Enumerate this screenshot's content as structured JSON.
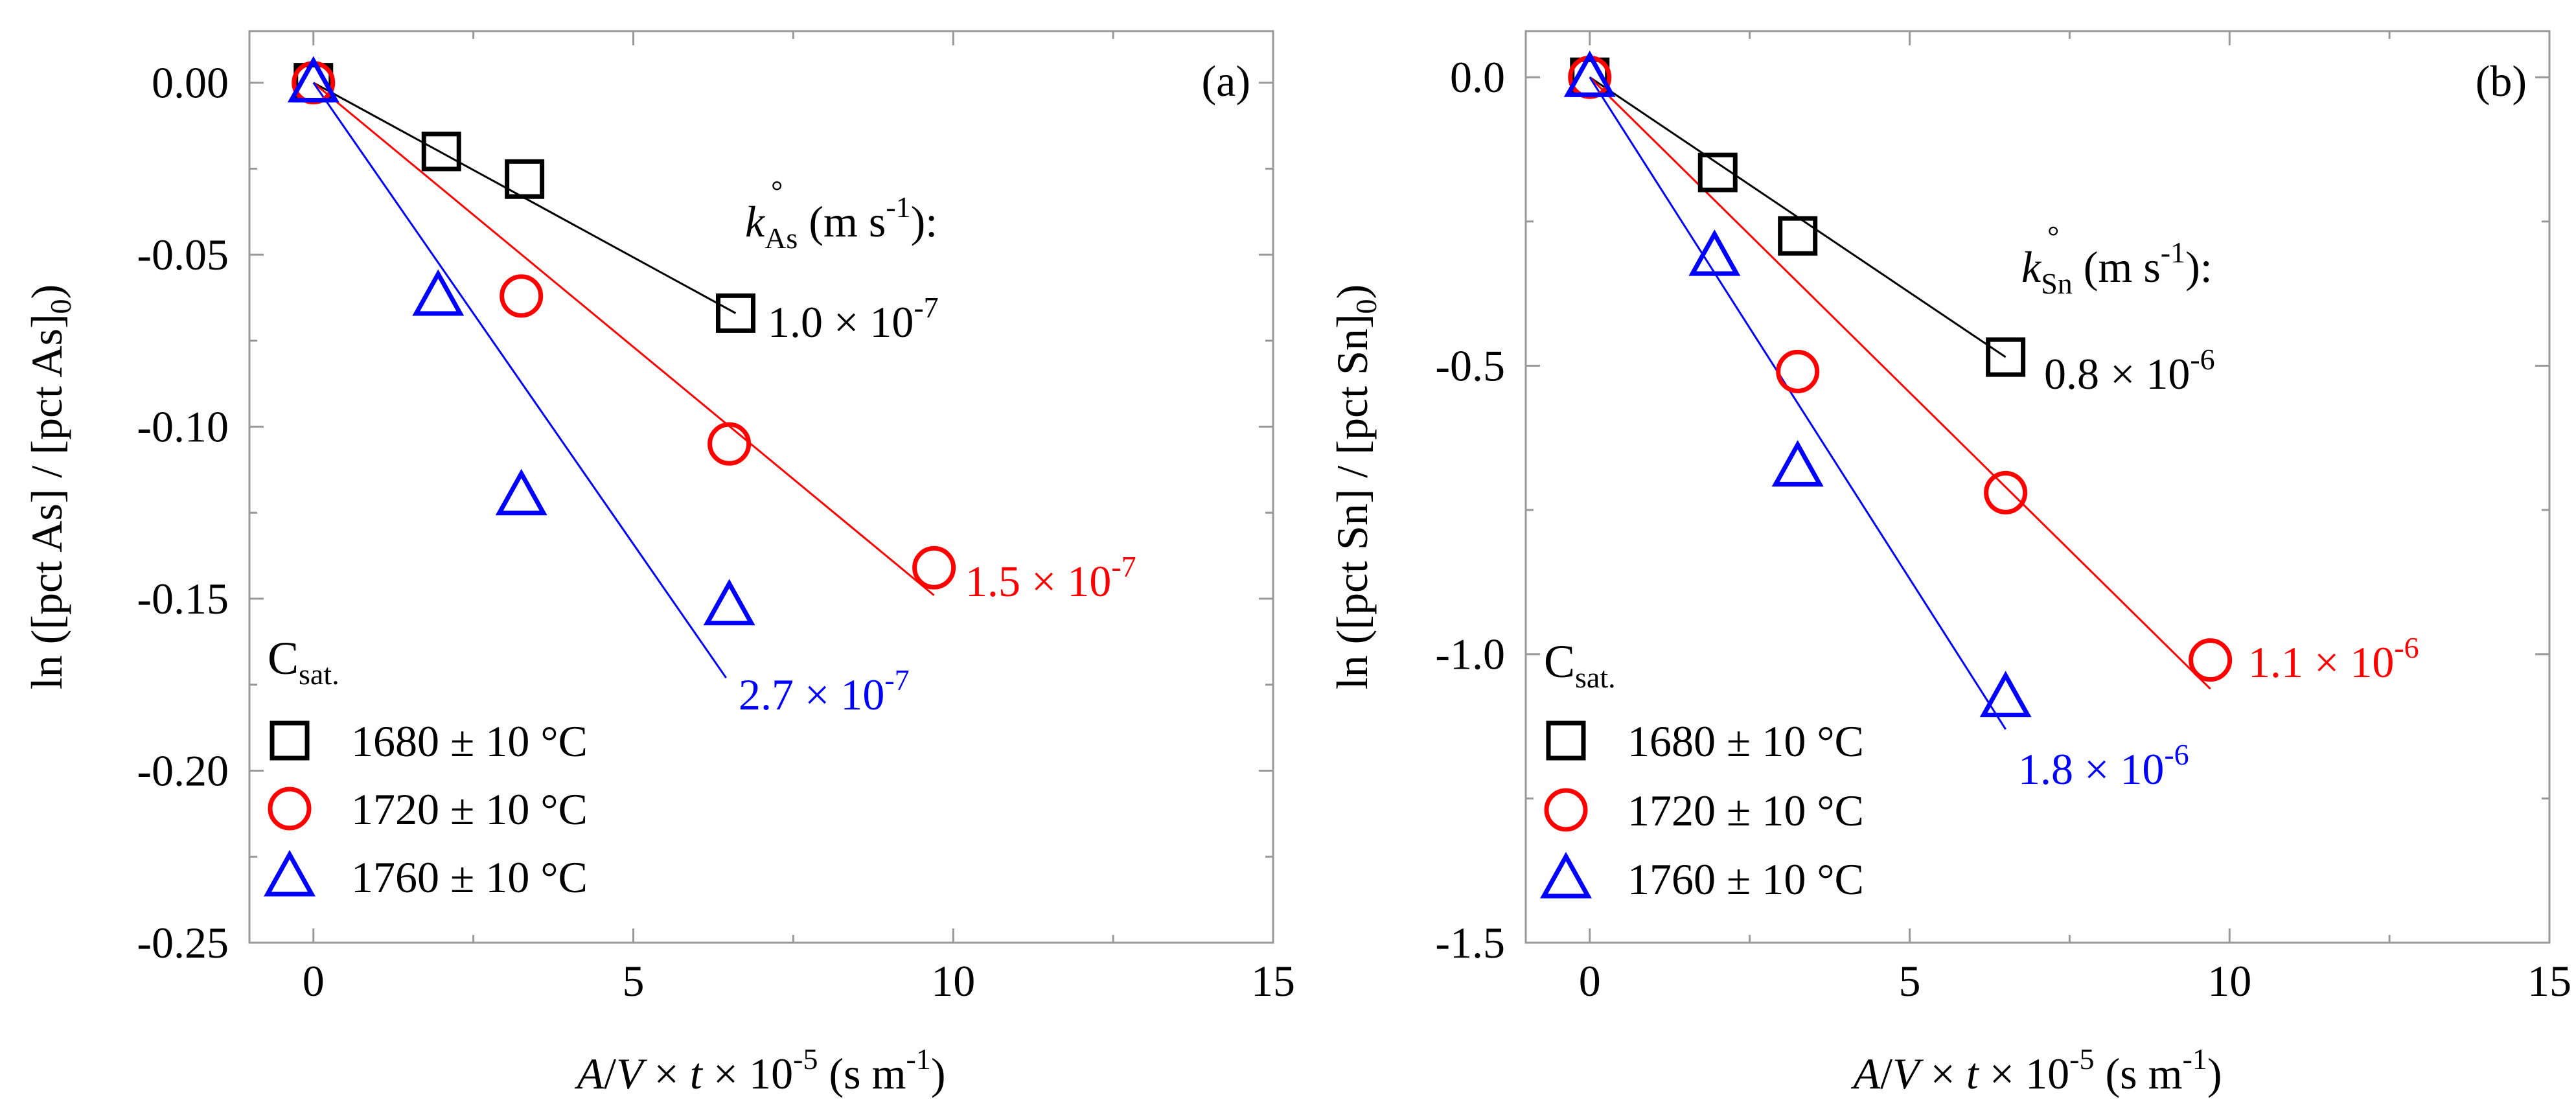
{
  "colors": {
    "black": "#000000",
    "red": "#ff0000",
    "blue": "#0000ff",
    "frame": "#999999"
  },
  "chart_data": [
    {
      "type": "scatter",
      "panel_label": "(a)",
      "ylabel": "ln ([pct As] / [pct As]0)",
      "ylabel_parts": {
        "main": "ln ([pct As] / [pct As]",
        "sub": "0",
        "close": ")"
      },
      "xlabel": "A/V × t × 10-5 (s m-1)",
      "xlabel_parts": {
        "a": "A",
        "slash": "/",
        "v": "V",
        "times_t": " × ",
        "t": "t",
        "times10": " × 10",
        "exp": "-5",
        "unit": " (s m",
        "unit_exp": "-1",
        "close": ")"
      },
      "xlim": [
        -1,
        15
      ],
      "ylim": [
        -0.25,
        0.015
      ],
      "xticks": [
        0,
        5,
        10,
        15
      ],
      "xtick_labels": [
        "0",
        "5",
        "10",
        "15"
      ],
      "yticks": [
        0.0,
        -0.05,
        -0.1,
        -0.15,
        -0.2,
        -0.25
      ],
      "ytick_labels": [
        "0.00",
        "-0.05",
        "-0.10",
        "-0.15",
        "-0.20",
        "-0.25"
      ],
      "rate_header": {
        "k": "k",
        "degree": "°",
        "sub": "As",
        "unit": " (m s",
        "unit_exp": "-1",
        "close": "):"
      },
      "series": [
        {
          "name": "1680 ± 10 °C",
          "marker": "square",
          "color": "#000000",
          "x": [
            0,
            2.0,
            3.3,
            6.6
          ],
          "y": [
            0.0,
            -0.02,
            -0.028,
            -0.067
          ],
          "fit": {
            "x": [
              0,
              6.6
            ],
            "y": [
              0.0,
              -0.067
            ]
          },
          "rate": {
            "mantissa": "1.0 × 10",
            "exp": "-7"
          }
        },
        {
          "name": "1720 ± 10 °C",
          "marker": "circle",
          "color": "#ff0000",
          "x": [
            0,
            3.25,
            6.5,
            9.7
          ],
          "y": [
            0.0,
            -0.062,
            -0.105,
            -0.141
          ],
          "fit": {
            "x": [
              0,
              9.7
            ],
            "y": [
              0.0,
              -0.149
            ]
          },
          "rate": {
            "mantissa": "1.5 × 10",
            "exp": "-7"
          }
        },
        {
          "name": "1760 ± 10 °C",
          "marker": "triangle",
          "color": "#0000ff",
          "x": [
            0,
            1.95,
            3.25,
            6.5
          ],
          "y": [
            0.0,
            -0.062,
            -0.12,
            -0.152
          ],
          "fit": {
            "x": [
              0,
              6.45
            ],
            "y": [
              0.0,
              -0.173
            ]
          },
          "rate": {
            "mantissa": "2.7 × 10",
            "exp": "-7"
          }
        }
      ],
      "legend": {
        "title": "C",
        "title_sub": "sat.",
        "placement": "bottom-left"
      }
    },
    {
      "type": "scatter",
      "panel_label": "(b)",
      "ylabel": "ln ([pct Sn] / [pct Sn]0)",
      "ylabel_parts": {
        "main": "ln ([pct Sn] / [pct Sn]",
        "sub": "0",
        "close": ")"
      },
      "xlabel": "A/V × t × 10-5 (s m-1)",
      "xlabel_parts": {
        "a": "A",
        "slash": "/",
        "v": "V",
        "times_t": " × ",
        "t": "t",
        "times10": " × 10",
        "exp": "-5",
        "unit": " (s m",
        "unit_exp": "-1",
        "close": ")"
      },
      "xlim": [
        -1,
        15
      ],
      "ylim": [
        -1.5,
        0.08
      ],
      "xticks": [
        0,
        5,
        10,
        15
      ],
      "xtick_labels": [
        "0",
        "5",
        "10",
        "15"
      ],
      "yticks": [
        0.0,
        -0.5,
        -1.0,
        -1.5
      ],
      "ytick_labels": [
        "0.0",
        "-0.5",
        "-1.0",
        "-1.5"
      ],
      "rate_header": {
        "k": "k",
        "degree": "°",
        "sub": "Sn",
        "unit": " (m s",
        "unit_exp": "-1",
        "close": "):"
      },
      "series": [
        {
          "name": "1680 ± 10 °C",
          "marker": "square",
          "color": "#000000",
          "x": [
            0,
            2.0,
            3.25,
            6.5
          ],
          "y": [
            0.0,
            -0.165,
            -0.275,
            -0.485
          ],
          "fit": {
            "x": [
              0,
              6.5
            ],
            "y": [
              0.0,
              -0.485
            ]
          },
          "rate": {
            "mantissa": "0.8 × 10",
            "exp": "-6"
          }
        },
        {
          "name": "1720 ± 10 °C",
          "marker": "circle",
          "color": "#ff0000",
          "x": [
            0,
            3.25,
            6.5,
            9.7
          ],
          "y": [
            0.0,
            -0.51,
            -0.72,
            -1.01
          ],
          "fit": {
            "x": [
              0,
              9.7
            ],
            "y": [
              0.0,
              -1.06
            ]
          },
          "rate": {
            "mantissa": "1.1 × 10",
            "exp": "-6"
          }
        },
        {
          "name": "1760 ± 10 °C",
          "marker": "triangle",
          "color": "#0000ff",
          "x": [
            0,
            1.95,
            3.25,
            6.5
          ],
          "y": [
            0.0,
            -0.31,
            -0.675,
            -1.075
          ],
          "fit": {
            "x": [
              0,
              6.5
            ],
            "y": [
              0.0,
              -1.13
            ]
          },
          "rate": {
            "mantissa": "1.8 × 10",
            "exp": "-6"
          }
        }
      ],
      "legend": {
        "title": "C",
        "title_sub": "sat.",
        "placement": "bottom-left"
      }
    }
  ]
}
